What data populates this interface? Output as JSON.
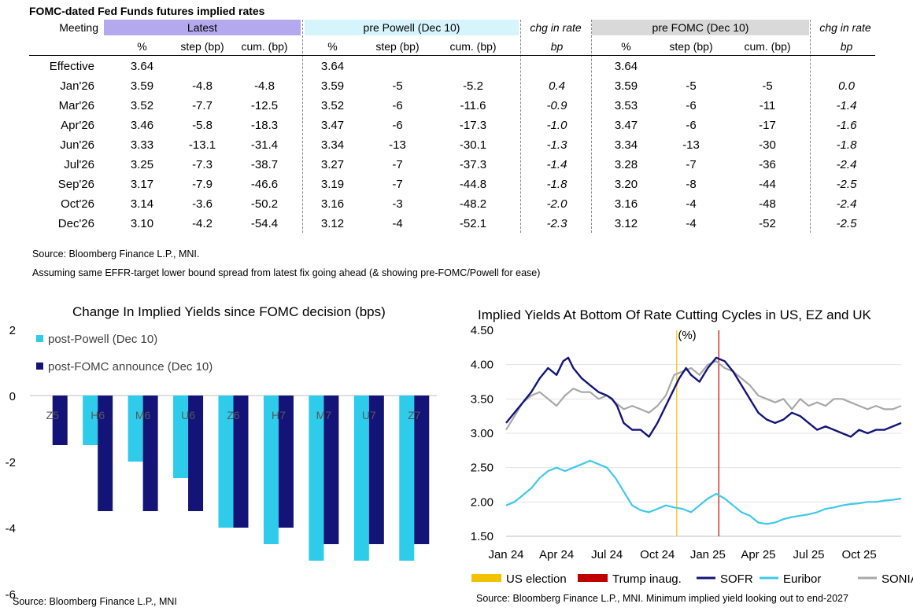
{
  "table": {
    "title": "FOMC-dated Fed Funds futures implied rates",
    "headers": {
      "meeting": "Meeting",
      "latest": "Latest",
      "pre_powell": "pre Powell (Dec 10)",
      "chg1": "chg in rate",
      "pre_fomc": "pre FOMC (Dec 10)",
      "chg2": "chg in rate"
    },
    "subheaders": [
      "%",
      "step (bp)",
      "cum. (bp)",
      "%",
      "step (bp)",
      "cum. (bp)",
      "bp",
      "%",
      "step (bp)",
      "cum. (bp)",
      "bp"
    ],
    "rows": [
      [
        "Effective",
        "3.64",
        "",
        "",
        "3.64",
        "",
        "",
        "",
        "3.64",
        "",
        "",
        ""
      ],
      [
        "Jan'26",
        "3.59",
        "-4.8",
        "-4.8",
        "3.59",
        "-5",
        "-5.2",
        "0.4",
        "3.59",
        "-5",
        "-5",
        "0.0"
      ],
      [
        "Mar'26",
        "3.52",
        "-7.7",
        "-12.5",
        "3.52",
        "-6",
        "-11.6",
        "-0.9",
        "3.53",
        "-6",
        "-11",
        "-1.4"
      ],
      [
        "Apr'26",
        "3.46",
        "-5.8",
        "-18.3",
        "3.47",
        "-6",
        "-17.3",
        "-1.0",
        "3.47",
        "-6",
        "-17",
        "-1.6"
      ],
      [
        "Jun'26",
        "3.33",
        "-13.1",
        "-31.4",
        "3.34",
        "-13",
        "-30.1",
        "-1.3",
        "3.34",
        "-13",
        "-30",
        "-1.8"
      ],
      [
        "Jul'26",
        "3.25",
        "-7.3",
        "-38.7",
        "3.27",
        "-7",
        "-37.3",
        "-1.4",
        "3.28",
        "-7",
        "-36",
        "-2.4"
      ],
      [
        "Sep'26",
        "3.17",
        "-7.9",
        "-46.6",
        "3.19",
        "-7",
        "-44.8",
        "-1.8",
        "3.20",
        "-8",
        "-44",
        "-2.5"
      ],
      [
        "Oct'26",
        "3.14",
        "-3.6",
        "-50.2",
        "3.16",
        "-3",
        "-48.2",
        "-2.0",
        "3.16",
        "-4",
        "-48",
        "-2.4"
      ],
      [
        "Dec'26",
        "3.10",
        "-4.2",
        "-54.4",
        "3.12",
        "-4",
        "-52.1",
        "-2.3",
        "3.12",
        "-4",
        "-52",
        "-2.5"
      ]
    ],
    "source": "Source: Bloomberg Finance L.P., MNI.",
    "note": "Assuming same  EFFR-target lower bound spread from latest fix going ahead (& showing pre-FOMC/Powell for ease)"
  },
  "chart_data": [
    {
      "type": "bar",
      "title": "Change In Implied Yields since FOMC decision (bps)",
      "categories": [
        "Z5",
        "H6",
        "M6",
        "U6",
        "Z6",
        "H7",
        "M7",
        "U7",
        "Z7"
      ],
      "series": [
        {
          "name": "post-Powell (Dec 10)",
          "color": "#2ecbea",
          "values": [
            0,
            -1.5,
            -2.0,
            -2.5,
            -4.0,
            -4.5,
            -5.0,
            -5.0,
            -5.0
          ]
        },
        {
          "name": "post-FOMC announce (Dec 10)",
          "color": "#141478",
          "values": [
            -1.5,
            -3.5,
            -3.5,
            -3.5,
            -4.0,
            -4.0,
            -4.5,
            -4.5,
            -4.5
          ]
        }
      ],
      "ylim": [
        -6,
        2
      ],
      "yticks": [
        "2",
        "0",
        "-2",
        "-4",
        "-6"
      ],
      "legend_position": "top-left",
      "source": "Source: Bloomberg Finance L.P., MNI"
    },
    {
      "type": "line",
      "title": "Implied Yields At Bottom Of Rate Cutting Cycles in US, EZ and UK",
      "unit_label": "(%)",
      "ylim": [
        1.5,
        4.5
      ],
      "yticks": [
        "4.50",
        "4.00",
        "3.50",
        "3.00",
        "2.50",
        "2.00",
        "1.50"
      ],
      "xticks": [
        "Jan 24",
        "Apr 24",
        "Jul 24",
        "Oct 24",
        "Jan 25",
        "Apr 25",
        "Jul 25",
        "Oct 25"
      ],
      "x_range_months": [
        0,
        23.5
      ],
      "events": [
        {
          "name": "US election",
          "month": 10.15,
          "color": "#f2c200"
        },
        {
          "name": "Trump inaug.",
          "month": 12.65,
          "color": "#c00000"
        }
      ],
      "series": [
        {
          "name": "SOFR",
          "color": "#141478",
          "points": [
            [
              0,
              3.15
            ],
            [
              0.5,
              3.3
            ],
            [
              1,
              3.45
            ],
            [
              1.5,
              3.6
            ],
            [
              2,
              3.8
            ],
            [
              2.5,
              3.95
            ],
            [
              3,
              3.85
            ],
            [
              3.4,
              4.05
            ],
            [
              3.7,
              4.1
            ],
            [
              4,
              3.95
            ],
            [
              4.5,
              3.8
            ],
            [
              5,
              3.7
            ],
            [
              5.5,
              3.6
            ],
            [
              6,
              3.55
            ],
            [
              6.3,
              3.5
            ],
            [
              6.6,
              3.4
            ],
            [
              7,
              3.15
            ],
            [
              7.5,
              3.05
            ],
            [
              8,
              3.05
            ],
            [
              8.5,
              2.95
            ],
            [
              9,
              3.15
            ],
            [
              9.5,
              3.4
            ],
            [
              10,
              3.65
            ],
            [
              10.3,
              3.8
            ],
            [
              10.7,
              3.95
            ],
            [
              11,
              3.85
            ],
            [
              11.5,
              3.75
            ],
            [
              12,
              3.95
            ],
            [
              12.5,
              4.1
            ],
            [
              13,
              4.05
            ],
            [
              13.5,
              3.9
            ],
            [
              14,
              3.7
            ],
            [
              14.5,
              3.5
            ],
            [
              15,
              3.3
            ],
            [
              15.5,
              3.2
            ],
            [
              16,
              3.15
            ],
            [
              16.5,
              3.2
            ],
            [
              17,
              3.3
            ],
            [
              17.5,
              3.25
            ],
            [
              18,
              3.15
            ],
            [
              18.5,
              3.05
            ],
            [
              19,
              3.1
            ],
            [
              19.5,
              3.05
            ],
            [
              20,
              3.0
            ],
            [
              20.5,
              2.95
            ],
            [
              21,
              3.05
            ],
            [
              21.5,
              3.0
            ],
            [
              22,
              3.05
            ],
            [
              22.5,
              3.05
            ],
            [
              23,
              3.1
            ],
            [
              23.5,
              3.15
            ]
          ]
        },
        {
          "name": "Euribor",
          "color": "#3ec8ea",
          "points": [
            [
              0,
              1.95
            ],
            [
              0.5,
              2.0
            ],
            [
              1,
              2.1
            ],
            [
              1.5,
              2.2
            ],
            [
              2,
              2.35
            ],
            [
              2.5,
              2.45
            ],
            [
              3,
              2.5
            ],
            [
              3.5,
              2.45
            ],
            [
              4,
              2.5
            ],
            [
              4.5,
              2.55
            ],
            [
              5,
              2.6
            ],
            [
              5.5,
              2.55
            ],
            [
              6,
              2.5
            ],
            [
              6.5,
              2.35
            ],
            [
              7,
              2.15
            ],
            [
              7.5,
              1.95
            ],
            [
              8,
              1.88
            ],
            [
              8.5,
              1.85
            ],
            [
              9,
              1.9
            ],
            [
              9.5,
              1.95
            ],
            [
              10,
              1.92
            ],
            [
              10.5,
              1.9
            ],
            [
              11,
              1.85
            ],
            [
              11.5,
              1.95
            ],
            [
              12,
              2.05
            ],
            [
              12.5,
              2.12
            ],
            [
              13,
              2.05
            ],
            [
              13.5,
              1.95
            ],
            [
              14,
              1.85
            ],
            [
              14.5,
              1.8
            ],
            [
              15,
              1.7
            ],
            [
              15.5,
              1.68
            ],
            [
              16,
              1.7
            ],
            [
              16.5,
              1.75
            ],
            [
              17,
              1.78
            ],
            [
              17.5,
              1.8
            ],
            [
              18,
              1.82
            ],
            [
              18.5,
              1.85
            ],
            [
              19,
              1.9
            ],
            [
              19.5,
              1.92
            ],
            [
              20,
              1.95
            ],
            [
              20.5,
              1.97
            ],
            [
              21,
              1.98
            ],
            [
              21.5,
              2.0
            ],
            [
              22,
              2.0
            ],
            [
              22.5,
              2.02
            ],
            [
              23,
              2.03
            ],
            [
              23.5,
              2.05
            ]
          ]
        },
        {
          "name": "SONIA",
          "color": "#a8a8a8",
          "points": [
            [
              0,
              3.05
            ],
            [
              0.5,
              3.25
            ],
            [
              1,
              3.45
            ],
            [
              1.5,
              3.55
            ],
            [
              2,
              3.6
            ],
            [
              2.5,
              3.5
            ],
            [
              3,
              3.4
            ],
            [
              3.5,
              3.55
            ],
            [
              4,
              3.65
            ],
            [
              4.5,
              3.6
            ],
            [
              5,
              3.6
            ],
            [
              5.5,
              3.5
            ],
            [
              6,
              3.55
            ],
            [
              6.5,
              3.45
            ],
            [
              7,
              3.35
            ],
            [
              7.5,
              3.4
            ],
            [
              8,
              3.35
            ],
            [
              8.5,
              3.3
            ],
            [
              9,
              3.4
            ],
            [
              9.5,
              3.55
            ],
            [
              10,
              3.85
            ],
            [
              10.5,
              3.9
            ],
            [
              11,
              3.95
            ],
            [
              11.5,
              3.85
            ],
            [
              12,
              4.0
            ],
            [
              12.5,
              4.05
            ],
            [
              13,
              3.95
            ],
            [
              13.5,
              3.9
            ],
            [
              14,
              3.8
            ],
            [
              14.5,
              3.7
            ],
            [
              15,
              3.55
            ],
            [
              15.5,
              3.5
            ],
            [
              16,
              3.45
            ],
            [
              16.5,
              3.5
            ],
            [
              17,
              3.35
            ],
            [
              17.5,
              3.5
            ],
            [
              18,
              3.4
            ],
            [
              18.5,
              3.45
            ],
            [
              19,
              3.4
            ],
            [
              19.5,
              3.5
            ],
            [
              20,
              3.5
            ],
            [
              20.5,
              3.45
            ],
            [
              21,
              3.4
            ],
            [
              21.5,
              3.35
            ],
            [
              22,
              3.4
            ],
            [
              22.5,
              3.35
            ],
            [
              23,
              3.35
            ],
            [
              23.5,
              3.4
            ]
          ]
        }
      ],
      "legend": [
        "US election",
        "Trump inaug.",
        "SOFR",
        "Euribor",
        "SONIA"
      ],
      "source": "Source: Bloomberg Finance L.P., MNI. Minimum implied yield looking out to end-2027"
    }
  ]
}
